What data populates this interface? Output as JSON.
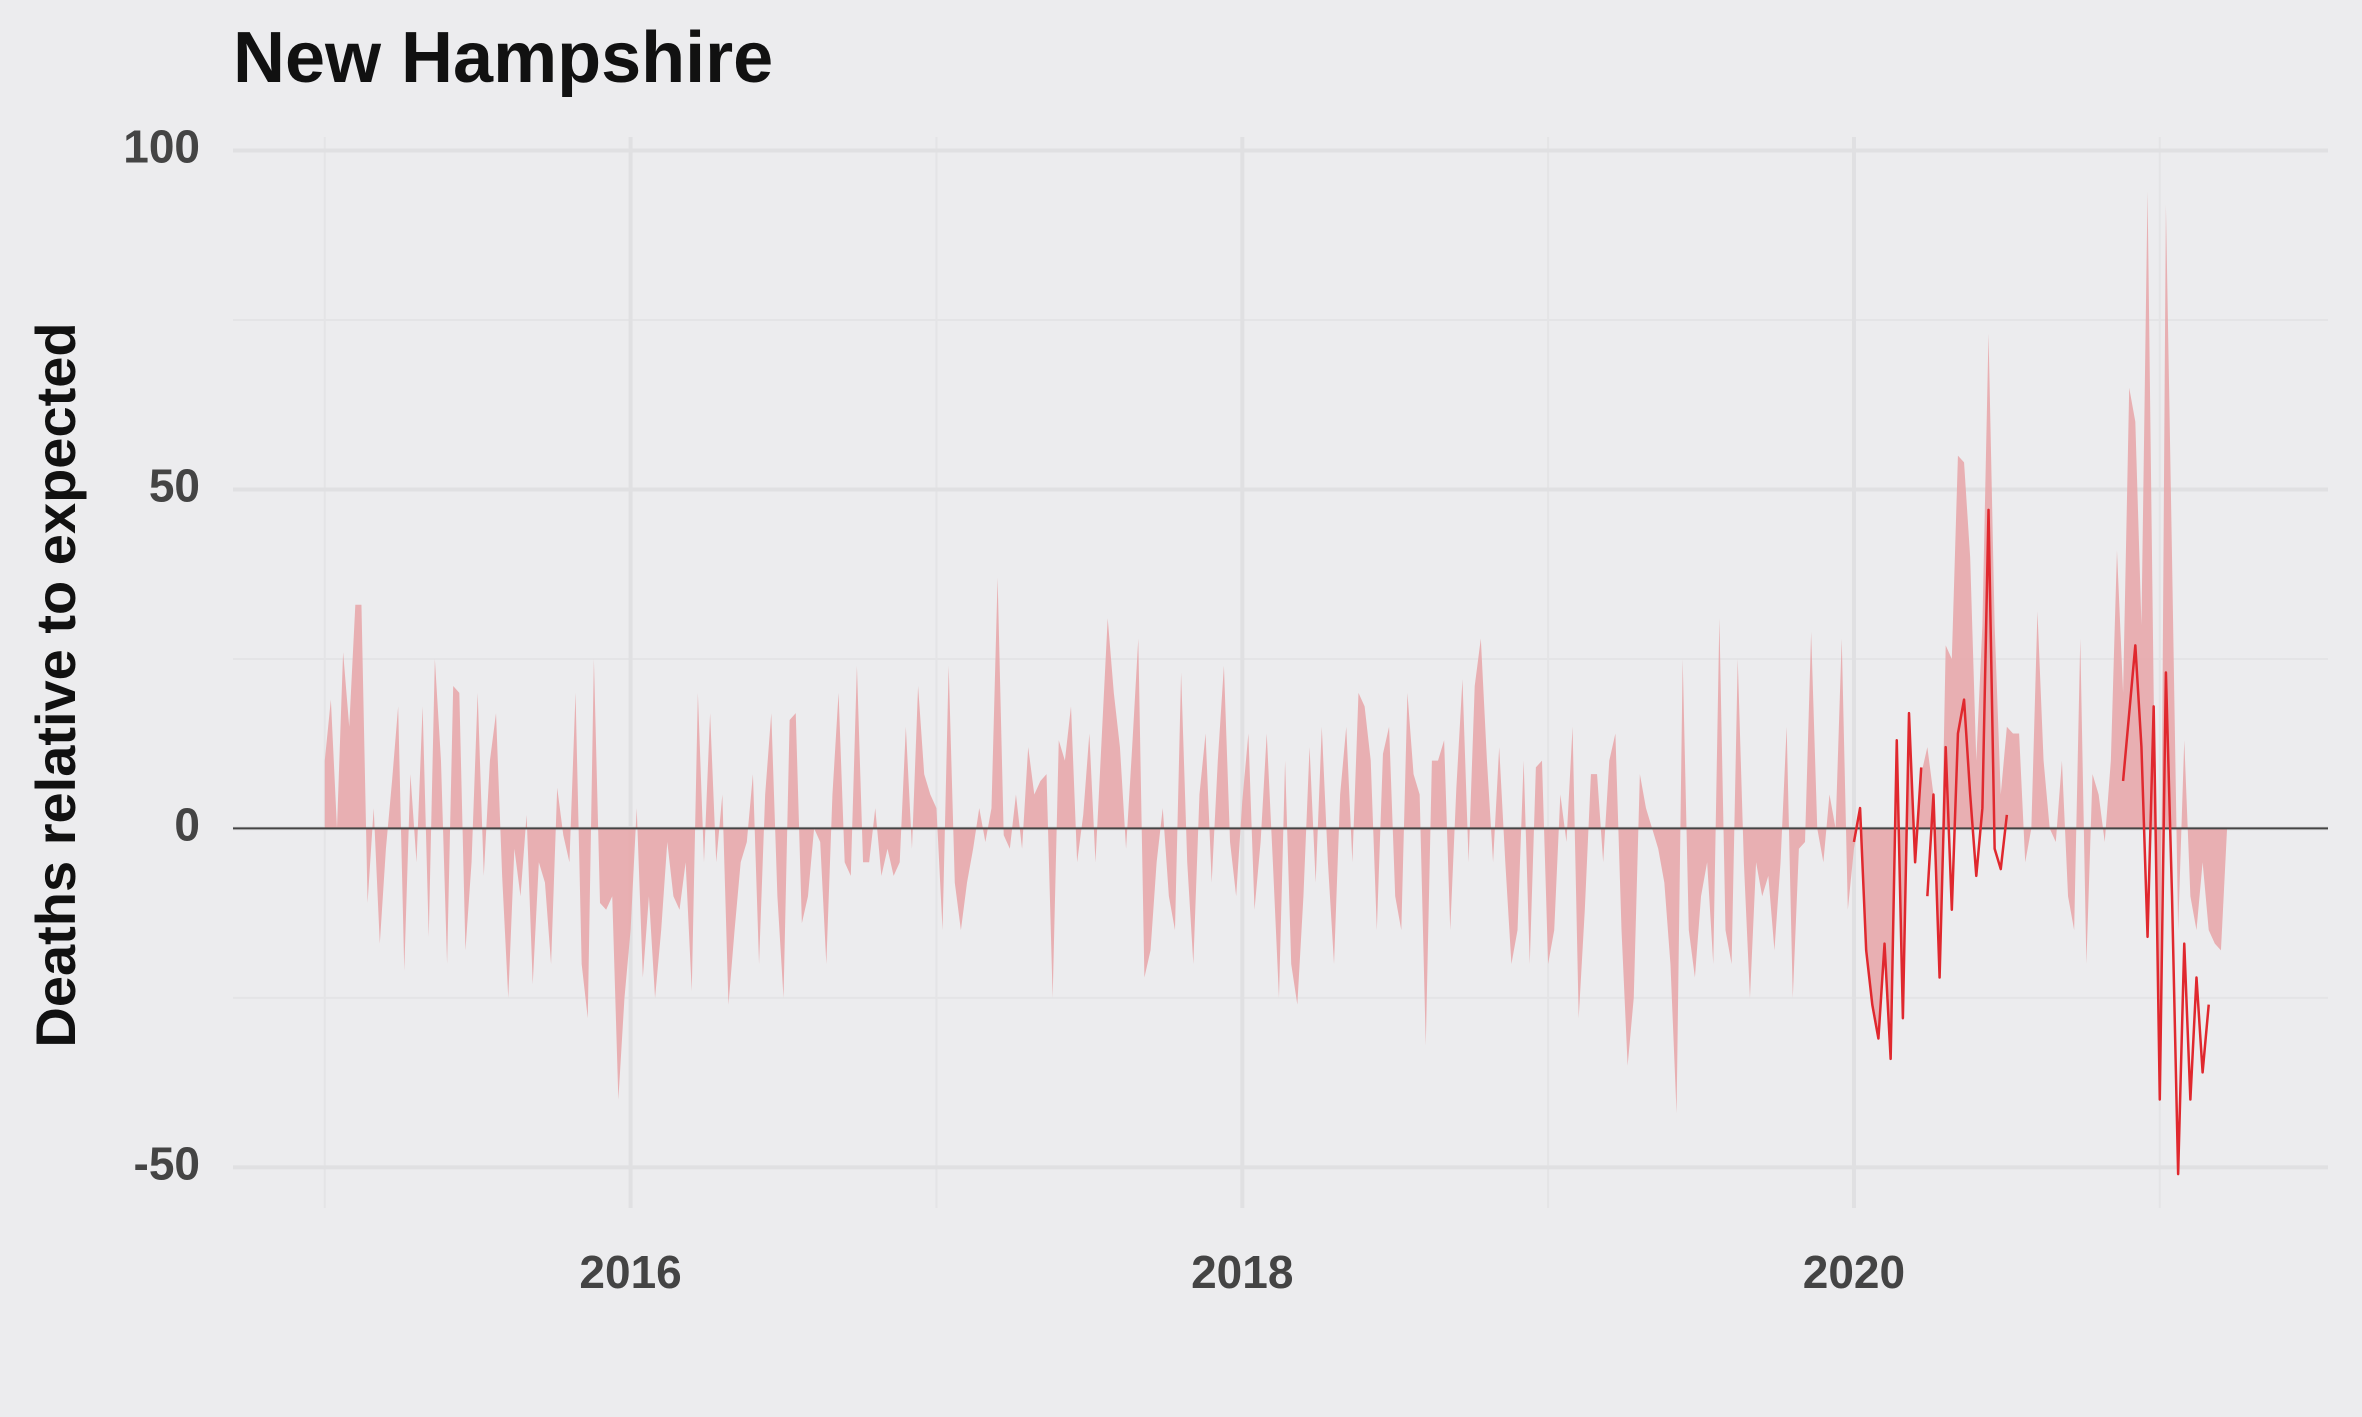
{
  "chart_data": {
    "type": "area",
    "title": "New Hampshire",
    "y_label": "Deaths relative to expected",
    "xlim": [
      2014.7,
      2021.55
    ],
    "xticks": [
      2016,
      2018,
      2020
    ],
    "x_minor_ticks": [
      2015,
      2017,
      2019,
      2021
    ],
    "ylim": [
      -56,
      102
    ],
    "yticks": [
      -50,
      0,
      50,
      100
    ],
    "y_minor_ticks": [
      -25,
      25,
      75
    ],
    "grid": true,
    "zero_line": true,
    "series": [
      {
        "type": "area",
        "color": "#e8a5a7",
        "x": [
          2015.0,
          2015.02,
          2015.04,
          2015.06,
          2015.08,
          2015.1,
          2015.12,
          2015.14,
          2015.16,
          2015.18,
          2015.2,
          2015.22,
          2015.24,
          2015.26,
          2015.28,
          2015.3,
          2015.32,
          2015.34,
          2015.36,
          2015.38,
          2015.4,
          2015.42,
          2015.44,
          2015.46,
          2015.48,
          2015.5,
          2015.52,
          2015.54,
          2015.56,
          2015.58,
          2015.6,
          2015.62,
          2015.64,
          2015.66,
          2015.68,
          2015.7,
          2015.72,
          2015.74,
          2015.76,
          2015.78,
          2015.8,
          2015.82,
          2015.84,
          2015.86,
          2015.88,
          2015.9,
          2015.92,
          2015.94,
          2015.96,
          2015.98,
          2016.0,
          2016.02,
          2016.04,
          2016.06,
          2016.08,
          2016.1,
          2016.12,
          2016.14,
          2016.16,
          2016.18,
          2016.2,
          2016.22,
          2016.24,
          2016.26,
          2016.28,
          2016.3,
          2016.32,
          2016.34,
          2016.36,
          2016.38,
          2016.4,
          2016.42,
          2016.44,
          2016.46,
          2016.48,
          2016.5,
          2016.52,
          2016.54,
          2016.56,
          2016.58,
          2016.6,
          2016.62,
          2016.64,
          2016.66,
          2016.68,
          2016.7,
          2016.72,
          2016.74,
          2016.76,
          2016.78,
          2016.8,
          2016.82,
          2016.84,
          2016.86,
          2016.88,
          2016.9,
          2016.92,
          2016.94,
          2016.96,
          2016.98,
          2017.0,
          2017.02,
          2017.04,
          2017.06,
          2017.08,
          2017.1,
          2017.12,
          2017.14,
          2017.16,
          2017.18,
          2017.2,
          2017.22,
          2017.24,
          2017.26,
          2017.28,
          2017.3,
          2017.32,
          2017.34,
          2017.36,
          2017.38,
          2017.4,
          2017.42,
          2017.44,
          2017.46,
          2017.48,
          2017.5,
          2017.52,
          2017.54,
          2017.56,
          2017.58,
          2017.6,
          2017.62,
          2017.64,
          2017.66,
          2017.68,
          2017.7,
          2017.72,
          2017.74,
          2017.76,
          2017.78,
          2017.8,
          2017.82,
          2017.84,
          2017.86,
          2017.88,
          2017.9,
          2017.92,
          2017.94,
          2017.96,
          2017.98,
          2018.0,
          2018.02,
          2018.04,
          2018.06,
          2018.08,
          2018.1,
          2018.12,
          2018.14,
          2018.16,
          2018.18,
          2018.2,
          2018.22,
          2018.24,
          2018.26,
          2018.28,
          2018.3,
          2018.32,
          2018.34,
          2018.36,
          2018.38,
          2018.4,
          2018.42,
          2018.44,
          2018.46,
          2018.48,
          2018.5,
          2018.52,
          2018.54,
          2018.56,
          2018.58,
          2018.6,
          2018.62,
          2018.64,
          2018.66,
          2018.68,
          2018.7,
          2018.72,
          2018.74,
          2018.76,
          2018.78,
          2018.8,
          2018.82,
          2018.84,
          2018.86,
          2018.88,
          2018.9,
          2018.92,
          2018.94,
          2018.96,
          2018.98,
          2019.0,
          2019.02,
          2019.04,
          2019.06,
          2019.08,
          2019.1,
          2019.12,
          2019.14,
          2019.16,
          2019.18,
          2019.2,
          2019.22,
          2019.24,
          2019.26,
          2019.28,
          2019.3,
          2019.32,
          2019.34,
          2019.36,
          2019.38,
          2019.4,
          2019.42,
          2019.44,
          2019.46,
          2019.48,
          2019.5,
          2019.52,
          2019.54,
          2019.56,
          2019.58,
          2019.6,
          2019.62,
          2019.64,
          2019.66,
          2019.68,
          2019.7,
          2019.72,
          2019.74,
          2019.76,
          2019.78,
          2019.8,
          2019.82,
          2019.84,
          2019.86,
          2019.88,
          2019.9,
          2019.92,
          2019.94,
          2019.96,
          2019.98,
          2020.0,
          2020.02,
          2020.04,
          2020.06,
          2020.08,
          2020.1,
          2020.12,
          2020.14,
          2020.16,
          2020.18,
          2020.2,
          2020.22,
          2020.24,
          2020.26,
          2020.28,
          2020.3,
          2020.32,
          2020.34,
          2020.36,
          2020.38,
          2020.4,
          2020.42,
          2020.44,
          2020.46,
          2020.48,
          2020.5,
          2020.52,
          2020.54,
          2020.56,
          2020.58,
          2020.6,
          2020.62,
          2020.64,
          2020.66,
          2020.68,
          2020.7,
          2020.72,
          2020.74,
          2020.76,
          2020.78,
          2020.8,
          2020.82,
          2020.84,
          2020.86,
          2020.88,
          2020.9,
          2020.92,
          2020.94,
          2020.96,
          2020.98,
          2021.0,
          2021.02,
          2021.04,
          2021.06,
          2021.08,
          2021.1,
          2021.12,
          2021.14,
          2021.16,
          2021.18,
          2021.2,
          2021.22
        ],
        "values": [
          10,
          19,
          0,
          26,
          15,
          33,
          33,
          -11,
          3,
          -17,
          -3,
          7,
          18,
          -21,
          8,
          -5,
          18,
          -16,
          25,
          10,
          -20,
          21,
          20,
          -18,
          -5,
          20,
          -7,
          10,
          17,
          -7,
          -25,
          -3,
          -10,
          2,
          -23,
          -5,
          -8,
          -20,
          6,
          -1,
          -5,
          20,
          -20,
          -28,
          25,
          -11,
          -12,
          -10,
          -40,
          -25,
          -15,
          3,
          -22,
          -10,
          -25,
          -15,
          -2,
          -10,
          -12,
          -5,
          -24,
          20,
          -5,
          17,
          -5,
          5,
          -26,
          -15,
          -5,
          -2,
          8,
          -20,
          5,
          17,
          -10,
          -25,
          16,
          17,
          -14,
          -10,
          0,
          -2,
          -20,
          5,
          20,
          -5,
          -7,
          24,
          -5,
          -5,
          3,
          -7,
          -3,
          -7,
          -5,
          15,
          -3,
          21,
          8,
          5,
          3,
          -15,
          24,
          -8,
          -15,
          -8,
          -3,
          3,
          -2,
          3,
          37,
          -1,
          -3,
          5,
          -3,
          12,
          5,
          7,
          8,
          -25,
          13,
          10,
          18,
          -5,
          2,
          14,
          -5,
          13,
          31,
          20,
          12,
          -3,
          12,
          28,
          -22,
          -18,
          -5,
          3,
          -10,
          -15,
          23,
          -5,
          -20,
          5,
          14,
          -8,
          10,
          24,
          -2,
          -10,
          4,
          14,
          -12,
          -2,
          14,
          -5,
          -25,
          10,
          -20,
          -26,
          -10,
          12,
          -8,
          15,
          -5,
          -20,
          5,
          15,
          -5,
          20,
          18,
          10,
          -15,
          11,
          15,
          -10,
          -15,
          20,
          8,
          5,
          -32,
          10,
          10,
          13,
          -15,
          6,
          22,
          -5,
          21,
          28,
          10,
          -5,
          12,
          -5,
          -20,
          -15,
          10,
          -20,
          9,
          10,
          -20,
          -15,
          5,
          -2,
          15,
          -28,
          -12,
          8,
          8,
          -5,
          10,
          14,
          -15,
          -35,
          -25,
          8,
          3,
          0,
          -3,
          -8,
          -20,
          -42,
          25,
          -15,
          -22,
          -10,
          -5,
          -20,
          31,
          -15,
          -20,
          25,
          -5,
          -25,
          -5,
          -10,
          -7,
          -18,
          -5,
          15,
          -25,
          -3,
          -2,
          29,
          0,
          -5,
          5,
          0,
          28,
          -12,
          -3,
          2,
          -18,
          -25,
          -30,
          -20,
          -30,
          13,
          -25,
          15,
          -5,
          8,
          12,
          5,
          -20,
          27,
          25,
          55,
          54,
          40,
          10,
          30,
          73,
          30,
          5,
          15,
          14,
          14,
          -5,
          0,
          32,
          10,
          0,
          -2,
          10,
          -10,
          -15,
          28,
          -20,
          8,
          5,
          -2,
          10,
          41,
          20,
          65,
          60,
          30,
          94,
          20,
          -38,
          92,
          40,
          -15,
          13,
          -10,
          -15,
          -5,
          -15,
          -17,
          -18,
          0
        ]
      },
      {
        "type": "line",
        "color": "#e0282e",
        "x": [
          2020.0,
          2020.02,
          2020.04,
          2020.06,
          2020.08,
          2020.1,
          2020.12,
          2020.14,
          2020.16,
          2020.18,
          2020.2,
          2020.22,
          2020.23,
          2020.24,
          2020.26,
          2020.28,
          2020.3,
          2020.32,
          2020.34,
          2020.36,
          2020.38,
          2020.4,
          2020.42,
          2020.44,
          2020.46,
          2020.48,
          2020.5,
          2020.52,
          2020.88,
          2020.9,
          2020.92,
          2020.94,
          2020.96,
          2020.98,
          2021.0,
          2021.02,
          2021.04,
          2021.06,
          2021.08,
          2021.1,
          2021.12,
          2021.14,
          2021.16
        ],
        "values": [
          -2,
          3,
          -18,
          -26,
          -31,
          -17,
          -34,
          13,
          -28,
          17,
          -5,
          9,
          null,
          -10,
          5,
          -22,
          12,
          -12,
          14,
          19,
          5,
          -7,
          3,
          47,
          -3,
          -6,
          2,
          null,
          7,
          17,
          27,
          12,
          -16,
          18,
          -40,
          23,
          -10,
          -51,
          -17,
          -40,
          -22,
          -36,
          -26
        ]
      }
    ]
  }
}
